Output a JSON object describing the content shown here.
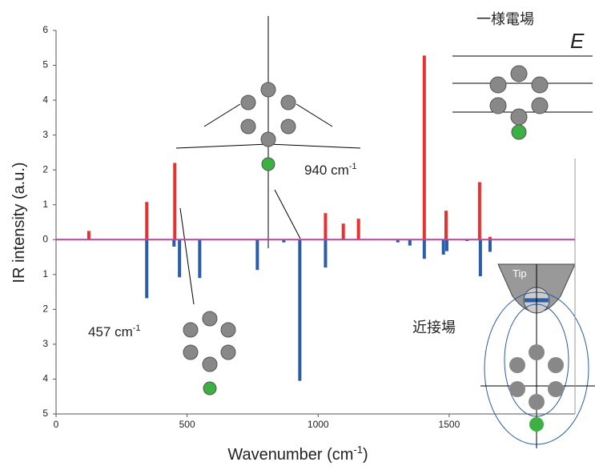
{
  "chart_data": {
    "type": "bar",
    "xlabel": {
      "text": "Wavenumber (cm",
      "sup": "-1",
      "end": ")"
    },
    "ylabel": "IR intensity (a.u.)",
    "xlim": [
      0,
      1980
    ],
    "xticks": [
      0,
      500,
      1000,
      1500
    ],
    "ylim": [
      -5,
      6
    ],
    "yticks": [
      6,
      5,
      4,
      3,
      2,
      1,
      0,
      {
        "value": -1,
        "label": "1"
      },
      {
        "value": -2,
        "label": "2"
      },
      {
        "value": -3,
        "label": "3"
      },
      {
        "value": -4,
        "label": "4"
      },
      {
        "value": -5,
        "label": "5"
      }
    ],
    "baseline_color": "#b5479a",
    "series": [
      {
        "color": "#e8312f",
        "x": [
          125,
          346,
          453,
          1028,
          1096,
          1154,
          1405,
          1488,
          1616,
          1656
        ],
        "values": [
          0.25,
          1.08,
          2.2,
          0.76,
          0.46,
          0.6,
          5.28,
          0.83,
          1.65,
          0.08
        ]
      },
      {
        "color": "#2a5ca8",
        "x": [
          346,
          450,
          471,
          548,
          768,
          869,
          930,
          1028,
          1304,
          1350,
          1405,
          1478,
          1491,
          1568,
          1619,
          1656
        ],
        "values": [
          -1.68,
          -0.2,
          -1.08,
          -1.1,
          -0.87,
          -0.08,
          -4.05,
          -0.8,
          -0.08,
          -0.17,
          -0.55,
          -0.43,
          -0.33,
          -0.04,
          -1.05,
          -0.35
        ]
      }
    ],
    "annotations": {
      "peak_940": {
        "text": "940 cm",
        "sup": "-1"
      },
      "peak_457": {
        "text": "457 cm",
        "sup": "-1"
      },
      "uniform_field": "一様電場",
      "field_symbol": "E",
      "near_field": "近接場",
      "tip": "Tip"
    }
  }
}
